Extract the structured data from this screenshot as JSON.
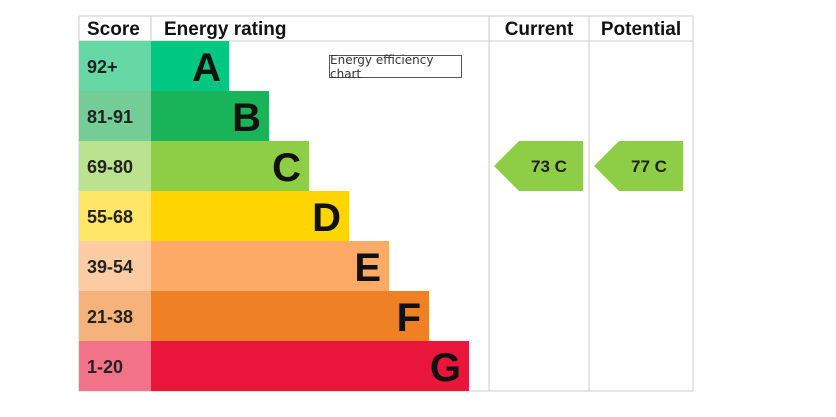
{
  "chart_data": {
    "type": "bar",
    "headers": {
      "score": "Score",
      "energy_rating": "Energy rating",
      "current": "Current",
      "potential": "Potential"
    },
    "note": "Energy efficiency chart",
    "bands": [
      {
        "score": "92+",
        "letter": "A",
        "color": "#00c781",
        "score_bg": "#66d8a6"
      },
      {
        "score": "81-91",
        "letter": "B",
        "color": "#19b459",
        "score_bg": "#74cd96"
      },
      {
        "score": "69-80",
        "letter": "C",
        "color": "#8dce46",
        "score_bg": "#bbe28e"
      },
      {
        "score": "55-68",
        "letter": "D",
        "color": "#ffd500",
        "score_bg": "#ffe666"
      },
      {
        "score": "39-54",
        "letter": "E",
        "color": "#fcaa65",
        "score_bg": "#fdccA3"
      },
      {
        "score": "21-38",
        "letter": "F",
        "color": "#ef8023",
        "score_bg": "#f5b37b"
      },
      {
        "score": "1-20",
        "letter": "G",
        "color": "#e9153b",
        "score_bg": "#f27389"
      }
    ],
    "current": {
      "value": 73,
      "band": "C",
      "label": "73  C",
      "color": "#8dce46"
    },
    "potential": {
      "value": 77,
      "band": "C",
      "label": "77  C",
      "color": "#8dce46"
    }
  }
}
